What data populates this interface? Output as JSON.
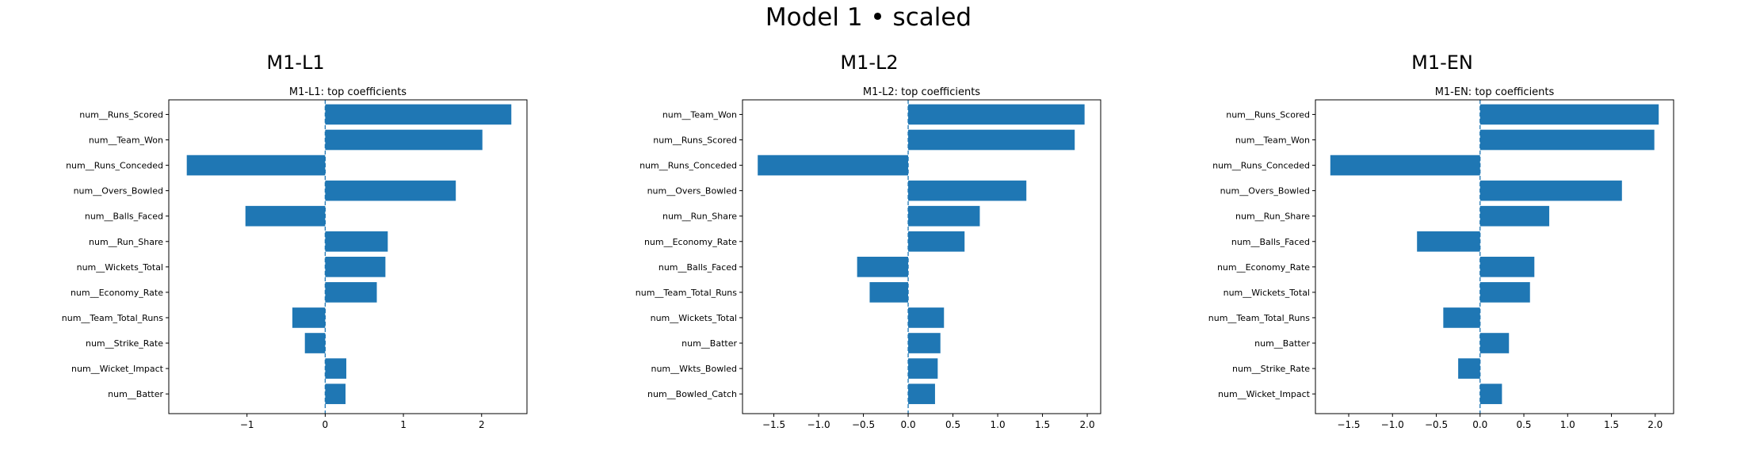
{
  "figure": {
    "title": "Model 1 • scaled"
  },
  "chart_data": [
    {
      "type": "bar",
      "orientation": "horizontal",
      "panel_title": "M1-L1",
      "title": "M1-L1: top coefficients",
      "categories": [
        "num__Runs_Scored",
        "num__Team_Won",
        "num__Runs_Conceded",
        "num__Overs_Bowled",
        "num__Balls_Faced",
        "num__Run_Share",
        "num__Wickets_Total",
        "num__Economy_Rate",
        "num__Team_Total_Runs",
        "num__Strike_Rate",
        "num__Wicket_Impact",
        "num__Batter"
      ],
      "values": [
        2.38,
        2.01,
        -1.77,
        1.67,
        -1.02,
        0.8,
        0.77,
        0.66,
        -0.42,
        -0.26,
        0.27,
        0.26
      ],
      "xlim": [
        -2.0,
        2.58
      ],
      "xticks": [
        -1,
        0,
        1,
        2
      ],
      "xtick_labels": [
        "−1",
        "0",
        "1",
        "2"
      ],
      "bar_color": "#1f77b4",
      "zero_line": "dashed"
    },
    {
      "type": "bar",
      "orientation": "horizontal",
      "panel_title": "M1-L2",
      "title": "M1-L2: top coefficients",
      "categories": [
        "num__Team_Won",
        "num__Runs_Scored",
        "num__Runs_Conceded",
        "num__Overs_Bowled",
        "num__Run_Share",
        "num__Economy_Rate",
        "num__Balls_Faced",
        "num__Team_Total_Runs",
        "num__Wickets_Total",
        "num__Batter",
        "num__Wkts_Bowled",
        "num__Bowled_Catch"
      ],
      "values": [
        1.97,
        1.86,
        -1.68,
        1.32,
        0.8,
        0.63,
        -0.57,
        -0.43,
        0.4,
        0.36,
        0.33,
        0.3
      ],
      "xlim": [
        -1.85,
        2.15
      ],
      "xticks": [
        -1.5,
        -1.0,
        -0.5,
        0.0,
        0.5,
        1.0,
        1.5,
        2.0
      ],
      "xtick_labels": [
        "−1.5",
        "−1.0",
        "−0.5",
        "0.0",
        "0.5",
        "1.0",
        "1.5",
        "2.0"
      ],
      "bar_color": "#1f77b4",
      "zero_line": "dashed"
    },
    {
      "type": "bar",
      "orientation": "horizontal",
      "panel_title": "M1-EN",
      "title": "M1-EN: top coefficients",
      "categories": [
        "num__Runs_Scored",
        "num__Team_Won",
        "num__Runs_Conceded",
        "num__Overs_Bowled",
        "num__Run_Share",
        "num__Balls_Faced",
        "num__Economy_Rate",
        "num__Wickets_Total",
        "num__Team_Total_Runs",
        "num__Batter",
        "num__Strike_Rate",
        "num__Wicket_Impact"
      ],
      "values": [
        2.04,
        1.99,
        -1.71,
        1.62,
        0.79,
        -0.72,
        0.62,
        0.57,
        -0.42,
        0.33,
        -0.25,
        0.25
      ],
      "xlim": [
        -1.88,
        2.21
      ],
      "xticks": [
        -1.5,
        -1.0,
        -0.5,
        0.0,
        0.5,
        1.0,
        1.5,
        2.0
      ],
      "xtick_labels": [
        "−1.5",
        "−1.0",
        "−0.5",
        "0.0",
        "0.5",
        "1.0",
        "1.5",
        "2.0"
      ],
      "bar_color": "#1f77b4",
      "zero_line": "dashed"
    }
  ]
}
